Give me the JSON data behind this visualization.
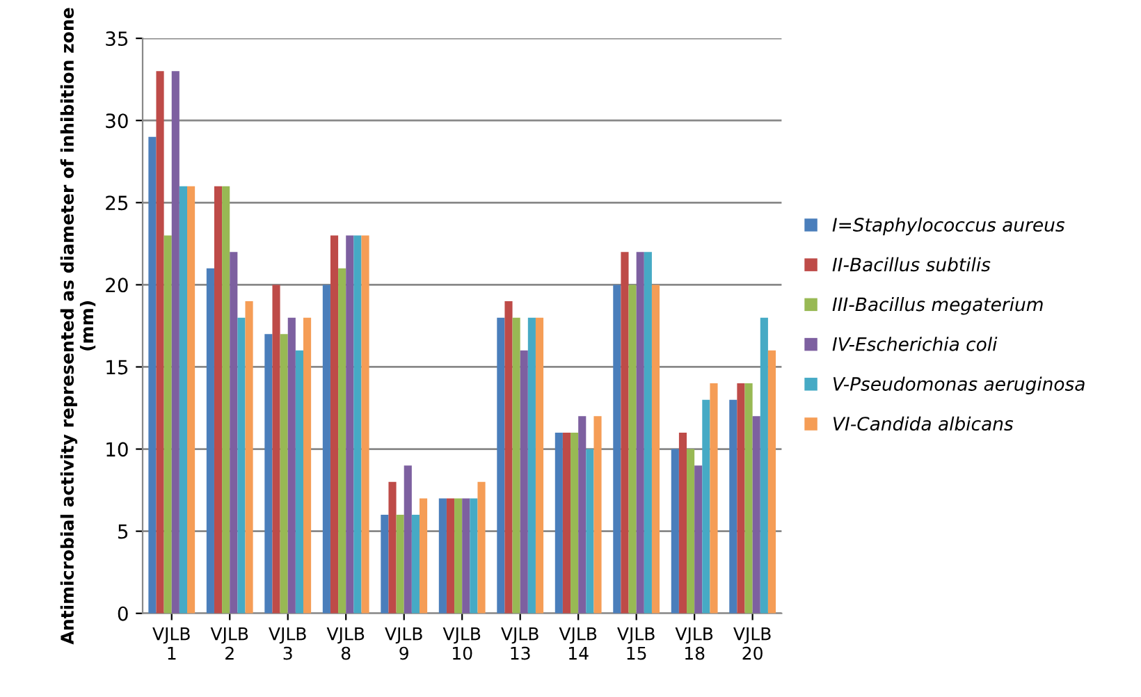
{
  "chart_data": {
    "type": "bar",
    "ylabel": "Antimicrobial activity represented as diameter of inhibition zone (mm)",
    "categories": [
      "VJLB\n1",
      "VJLB\n2",
      "VJLB\n3",
      "VJLB\n8",
      "VJLB\n9",
      "VJLB\n10",
      "VJLB\n13",
      "VJLB\n14",
      "VJLB\n15",
      "VJLB\n18",
      "VJLB\n20"
    ],
    "series": [
      {
        "name": "I=Staphylococcus aureus",
        "color": "#4a7ebb",
        "values": [
          29,
          21,
          17,
          20,
          6,
          7,
          18,
          11,
          20,
          10,
          13
        ]
      },
      {
        "name": "II-Bacillus subtilis",
        "color": "#be4b48",
        "values": [
          33,
          26,
          20,
          23,
          8,
          7,
          19,
          11,
          22,
          11,
          14
        ]
      },
      {
        "name": "III-Bacillus megaterium",
        "color": "#98b954",
        "values": [
          23,
          26,
          17,
          21,
          6,
          7,
          18,
          11,
          20,
          10,
          14
        ]
      },
      {
        "name": "IV-Escherichia coli",
        "color": "#7d60a0",
        "values": [
          33,
          22,
          18,
          23,
          9,
          7,
          16,
          12,
          22,
          9,
          12
        ]
      },
      {
        "name": "V-Pseudomonas aeruginosa",
        "color": "#46aac5",
        "values": [
          26,
          18,
          16,
          23,
          6,
          7,
          18,
          10,
          22,
          13,
          18
        ]
      },
      {
        "name": "VI-Candida albicans",
        "color": "#f59d56",
        "values": [
          26,
          19,
          18,
          23,
          7,
          8,
          18,
          12,
          20,
          14,
          16
        ]
      }
    ],
    "ylim": [
      0,
      35
    ],
    "yticks": [
      0,
      5,
      10,
      15,
      20,
      25,
      30,
      35
    ],
    "grid": "y",
    "legend": "right"
  }
}
